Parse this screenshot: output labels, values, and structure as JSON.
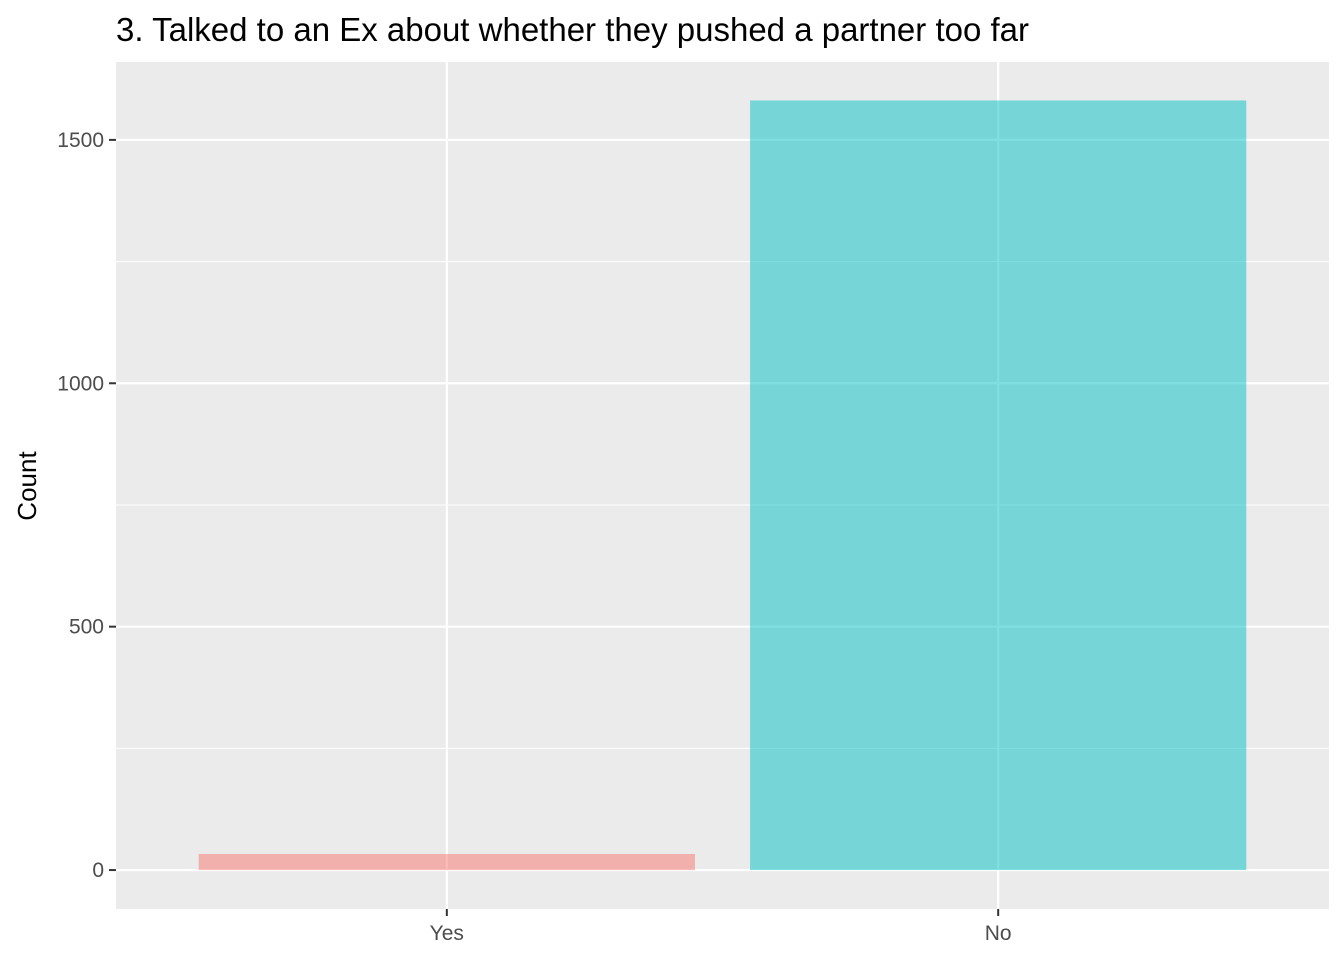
{
  "chart_data": {
    "type": "bar",
    "title": "3. Talked to an Ex about whether they pushed a partner too far",
    "xlabel": "",
    "ylabel": "Count",
    "categories": [
      "Yes",
      "No"
    ],
    "values": [
      33,
      1581
    ],
    "colors": [
      "#F8766D",
      "#00BFC4"
    ],
    "bar_alpha": 0.5,
    "ylim": [
      -80,
      1660
    ],
    "y_ticks": [
      0,
      500,
      1000,
      1500
    ],
    "y_minor_ticks": [
      250,
      750,
      1250
    ],
    "grid": true,
    "legend": "none",
    "panel_background": "#EBEBEB",
    "grid_color": "#FFFFFF"
  }
}
